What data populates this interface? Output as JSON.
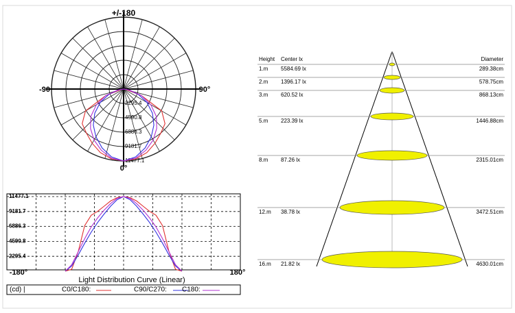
{
  "polar": {
    "top_label": "+/-180",
    "left_label": "-90",
    "right_label": "90°",
    "bottom_label": "0°",
    "rings": [
      2295.4,
      4590.8,
      6886.3,
      9181.7,
      11477.1
    ]
  },
  "angles": [
    0,
    10,
    20,
    30,
    40,
    50,
    60,
    70,
    80,
    90
  ],
  "series": [
    {
      "name": "C0/C180:",
      "color": "#e03030",
      "values": [
        11477.1,
        11300,
        10800,
        10000,
        9200,
        8600,
        7000,
        3000,
        300,
        0
      ]
    },
    {
      "name": "C90/C270:",
      "color": "#3030e0",
      "values": [
        11477.1,
        11000,
        10000,
        8800,
        7500,
        6000,
        4300,
        2500,
        800,
        0
      ]
    },
    {
      "name": "C180:",
      "color": "#b030d0",
      "values": [
        11477.1,
        11200,
        10400,
        9400,
        8200,
        6800,
        5000,
        3000,
        1000,
        0
      ]
    }
  ],
  "linear": {
    "title": "Light Distribution Curve (Linear)",
    "x_left": "-180°",
    "x_right": "180°",
    "yticks": [
      2295.4,
      4590.8,
      6886.3,
      9181.7,
      11477.1
    ],
    "unit": "(cd) |"
  },
  "cone": {
    "headers": [
      "Height",
      "Center lx",
      "Diameter"
    ],
    "rows": [
      [
        "1.m",
        "5584.69 lx",
        "289.38cm"
      ],
      [
        "2.m",
        "1396.17 lx",
        "578.75cm"
      ],
      [
        "3.m",
        "620.52 lx",
        "868.13cm"
      ],
      [
        "5.m",
        "223.39 lx",
        "1446.88cm"
      ],
      [
        "8.m",
        "87.26 lx",
        "2315.01cm"
      ],
      [
        "12.m",
        "38.78 lx",
        "3472.51cm"
      ],
      [
        "16.m",
        "21.82 lx",
        "4630.01cm"
      ]
    ]
  }
}
